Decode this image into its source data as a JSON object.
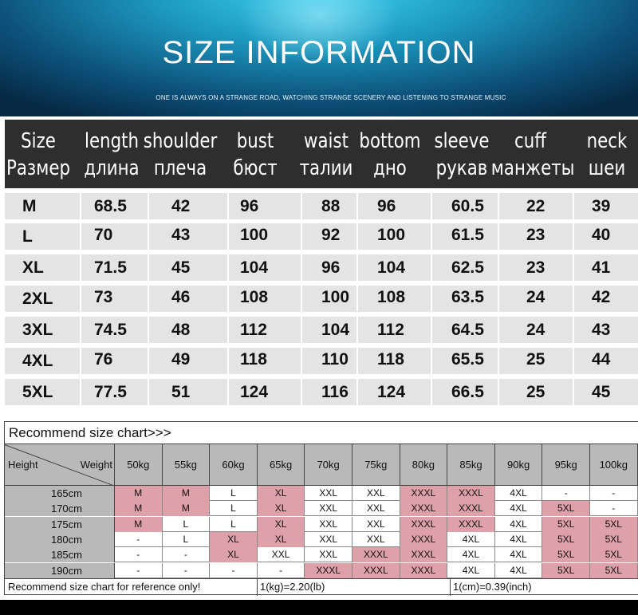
{
  "banner": {
    "title": "SIZE INFORMATION",
    "subtitle": "ONE IS ALWAYS ON A STRANGE ROAD, WATCHING STRANGE SCENERY AND LISTENING TO STRANGE MUSIC"
  },
  "size_table": {
    "headers": [
      {
        "en": "Size",
        "ru": "Размер"
      },
      {
        "en": "length",
        "ru": "длина"
      },
      {
        "en": "shoulder",
        "ru": "плеча"
      },
      {
        "en": "bust",
        "ru": "бюст"
      },
      {
        "en": "waist",
        "ru": "талии"
      },
      {
        "en": "bottom",
        "ru": "дно"
      },
      {
        "en": "sleeve",
        "ru": "рукав"
      },
      {
        "en": "cuff",
        "ru": "манжеты"
      },
      {
        "en": "neck",
        "ru": "шеи"
      }
    ],
    "rows": [
      [
        "M",
        "68.5",
        "42",
        "96",
        "88",
        "96",
        "60.5",
        "22",
        "39"
      ],
      [
        "L",
        "70",
        "43",
        "100",
        "92",
        "100",
        "61.5",
        "23",
        "40"
      ],
      [
        "XL",
        "71.5",
        "45",
        "104",
        "96",
        "104",
        "62.5",
        "23",
        "41"
      ],
      [
        "2XL",
        "73",
        "46",
        "108",
        "100",
        "108",
        "63.5",
        "24",
        "42"
      ],
      [
        "3XL",
        "74.5",
        "48",
        "112",
        "104",
        "112",
        "64.5",
        "24",
        "43"
      ],
      [
        "4XL",
        "76",
        "49",
        "118",
        "110",
        "118",
        "65.5",
        "25",
        "44"
      ],
      [
        "5XL",
        "77.5",
        "51",
        "124",
        "116",
        "124",
        "66.5",
        "25",
        "45"
      ]
    ]
  },
  "recommend": {
    "title": "Recommend size chart>>>",
    "height_label": "Height",
    "weight_label": "Weight",
    "weights": [
      "50kg",
      "55kg",
      "60kg",
      "65kg",
      "70kg",
      "75kg",
      "80kg",
      "85kg",
      "90kg",
      "95kg",
      "100kg"
    ],
    "rows": [
      {
        "height": "165cm",
        "cells": [
          "M",
          "M",
          "L",
          "XL",
          "XXL",
          "XXL",
          "XXXL",
          "XXXL",
          "4XL",
          "-",
          "-"
        ],
        "hi": [
          1,
          1,
          0,
          1,
          0,
          0,
          1,
          1,
          0,
          0,
          0
        ]
      },
      {
        "height": "170cm",
        "cells": [
          "M",
          "M",
          "L",
          "XL",
          "XXL",
          "XXL",
          "XXXL",
          "XXXL",
          "4XL",
          "5XL",
          "-"
        ],
        "hi": [
          1,
          1,
          0,
          1,
          0,
          0,
          1,
          1,
          0,
          1,
          0
        ]
      },
      {
        "height": "175cm",
        "cells": [
          "M",
          "L",
          "L",
          "XL",
          "XXL",
          "XXL",
          "XXXL",
          "XXXL",
          "4XL",
          "5XL",
          "5XL"
        ],
        "hi": [
          1,
          0,
          0,
          1,
          0,
          0,
          1,
          1,
          0,
          1,
          1
        ]
      },
      {
        "height": "180cm",
        "cells": [
          "-",
          "L",
          "XL",
          "XL",
          "XXL",
          "XXL",
          "XXXL",
          "4XL",
          "4XL",
          "5XL",
          "5XL"
        ],
        "hi": [
          0,
          0,
          1,
          1,
          0,
          0,
          1,
          0,
          0,
          1,
          1
        ]
      },
      {
        "height": "185cm",
        "cells": [
          "-",
          "-",
          "XL",
          "XXL",
          "XXL",
          "XXXL",
          "XXXL",
          "4XL",
          "4XL",
          "5XL",
          "5XL"
        ],
        "hi": [
          0,
          0,
          1,
          0,
          0,
          1,
          1,
          0,
          0,
          1,
          1
        ]
      },
      {
        "height": "190cm",
        "cells": [
          "-",
          "-",
          "-",
          "-",
          "XXXL",
          "XXXL",
          "XXXL",
          "4XL",
          "4XL",
          "5XL",
          "5XL"
        ],
        "hi": [
          0,
          0,
          0,
          0,
          1,
          1,
          1,
          0,
          0,
          1,
          1
        ]
      }
    ],
    "footer": {
      "note": "Recommend size chart for reference only!",
      "kg": "1(kg)=2.20(lb)",
      "cm": "1(cm)=0.39(inch)"
    }
  },
  "colors": {
    "header_bg": "#2e2e2e",
    "cell_bg": "#e4e4e4",
    "highlight": "#dfa1a9",
    "rec_header_bg": "#b9b9b9"
  }
}
